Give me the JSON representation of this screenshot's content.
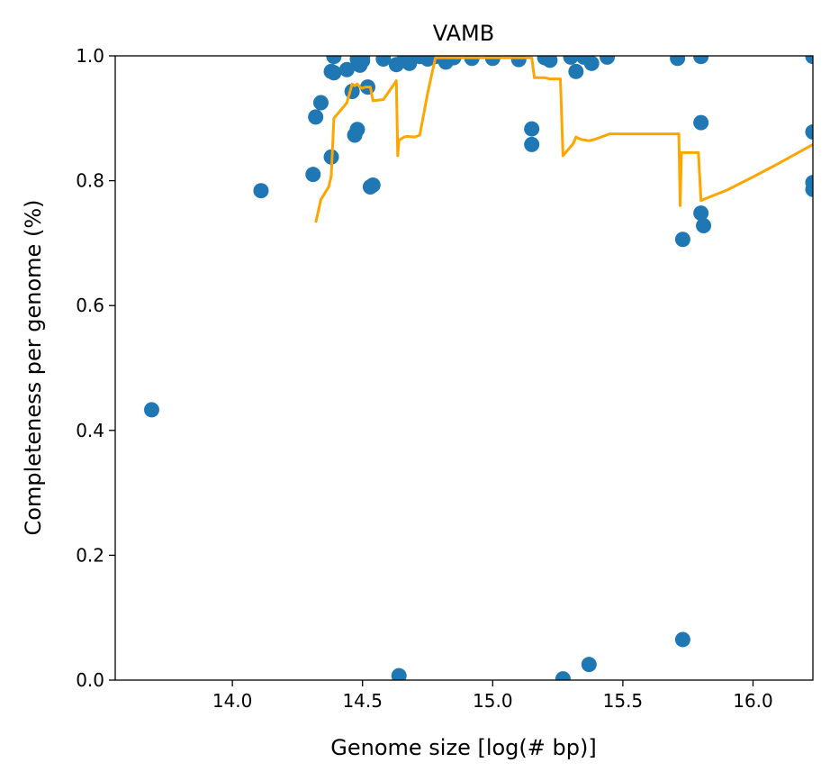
{
  "chart_data": {
    "type": "scatter",
    "title": "VAMB",
    "xlabel": "Genome size [log(# bp)]",
    "ylabel": "Completeness per genome (%)",
    "xlim": [
      13.55,
      16.23
    ],
    "ylim": [
      0.0,
      1.0
    ],
    "xticks": [
      "14.0",
      "14.5",
      "15.0",
      "15.5",
      "16.0"
    ],
    "xtick_values": [
      14.0,
      14.5,
      15.0,
      15.5,
      16.0
    ],
    "yticks": [
      "0.0",
      "0.2",
      "0.4",
      "0.6",
      "0.8",
      "1.0"
    ],
    "ytick_values": [
      0.0,
      0.2,
      0.4,
      0.6,
      0.8,
      1.0
    ],
    "grid": false,
    "colors": {
      "points": "#1f77b4",
      "trend": "#ffa500"
    },
    "series": [
      {
        "kind": "scatter",
        "x": [
          13.69,
          14.11,
          14.31,
          14.32,
          14.34,
          14.38,
          14.38,
          14.39,
          14.39,
          14.44,
          14.46,
          14.47,
          14.48,
          14.48,
          14.49,
          14.5,
          14.5,
          14.52,
          14.53,
          14.54,
          14.58,
          14.63,
          14.64,
          14.66,
          14.68,
          14.72,
          14.75,
          14.78,
          14.82,
          14.85,
          14.92,
          15.0,
          15.1,
          15.15,
          15.15,
          15.2,
          15.22,
          15.27,
          15.3,
          15.32,
          15.35,
          15.37,
          15.38,
          15.44,
          15.71,
          15.73,
          15.73,
          15.8,
          15.8,
          15.8,
          15.81,
          16.23,
          16.23,
          16.23,
          16.23
        ],
        "y": [
          0.433,
          0.784,
          0.81,
          0.902,
          0.925,
          0.975,
          0.838,
          0.999,
          0.973,
          0.978,
          0.943,
          0.873,
          0.995,
          0.882,
          0.985,
          0.992,
          0.999,
          0.95,
          0.79,
          0.793,
          0.995,
          0.986,
          0.007,
          0.994,
          0.988,
          0.999,
          0.995,
          0.999,
          0.99,
          0.997,
          0.996,
          0.996,
          0.994,
          0.883,
          0.858,
          0.997,
          0.993,
          0.002,
          0.998,
          0.975,
          0.998,
          0.025,
          0.988,
          0.998,
          0.996,
          0.706,
          0.065,
          0.999,
          0.893,
          0.748,
          0.728,
          0.999,
          0.878,
          0.797,
          0.786
        ]
      },
      {
        "kind": "line",
        "x": [
          14.32,
          14.34,
          14.37,
          14.38,
          14.39,
          14.44,
          14.46,
          14.47,
          14.48,
          14.49,
          14.5,
          14.51,
          14.53,
          14.54,
          14.58,
          14.63,
          14.635,
          14.64,
          14.66,
          14.67,
          14.7,
          14.72,
          14.75,
          14.78,
          14.85,
          14.92,
          15.0,
          15.1,
          15.15,
          15.16,
          15.2,
          15.22,
          15.26,
          15.27,
          15.31,
          15.32,
          15.34,
          15.37,
          15.39,
          15.45,
          15.71,
          15.715,
          15.72,
          15.725,
          15.73,
          15.76,
          15.79,
          15.8,
          15.81,
          15.9,
          16.0,
          16.1,
          16.23
        ],
        "y": [
          0.733,
          0.77,
          0.79,
          0.808,
          0.9,
          0.925,
          0.955,
          0.952,
          0.955,
          0.95,
          0.948,
          0.95,
          0.95,
          0.928,
          0.93,
          0.96,
          0.84,
          0.865,
          0.87,
          0.871,
          0.87,
          0.873,
          0.94,
          0.997,
          0.997,
          0.997,
          0.997,
          0.997,
          0.997,
          0.965,
          0.965,
          0.963,
          0.963,
          0.84,
          0.86,
          0.87,
          0.866,
          0.864,
          0.866,
          0.875,
          0.875,
          0.875,
          0.76,
          0.845,
          0.845,
          0.845,
          0.845,
          0.768,
          0.77,
          0.785,
          0.806,
          0.828,
          0.858
        ]
      }
    ]
  }
}
